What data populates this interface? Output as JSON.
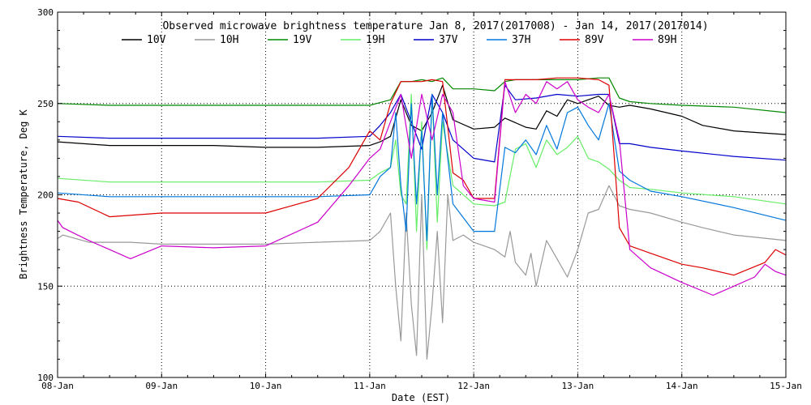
{
  "chart_data": {
    "type": "line",
    "title": "Observed microwave brightness temperature Jan  8, 2017(2017008) - Jan 14, 2017(2017014)",
    "xlabel": "Date (EST)",
    "ylabel": "Brightness Temperature, Deg K",
    "xlim": [
      0,
      7
    ],
    "ylim": [
      100,
      300
    ],
    "yticks": [
      100,
      150,
      200,
      250,
      300
    ],
    "xtick_labels": [
      "08-Jan",
      "09-Jan",
      "10-Jan",
      "11-Jan",
      "12-Jan",
      "13-Jan",
      "14-Jan",
      "15-Jan"
    ],
    "grid": "dotted",
    "legend_position": "top",
    "series": [
      {
        "name": "10V",
        "color": "#000000",
        "x": [
          0,
          0.5,
          1,
          1.5,
          2,
          2.5,
          3,
          3.1,
          3.2,
          3.3,
          3.4,
          3.5,
          3.6,
          3.7,
          3.8,
          4,
          4.2,
          4.3,
          4.5,
          4.6,
          4.7,
          4.8,
          4.9,
          5,
          5.1,
          5.2,
          5.3,
          5.4,
          5.5,
          5.7,
          6,
          6.2,
          6.5,
          7
        ],
        "y": [
          229,
          227,
          227,
          227,
          226,
          226,
          227,
          229,
          232,
          252,
          238,
          235,
          245,
          260,
          241,
          236,
          237,
          242,
          237,
          236,
          246,
          243,
          252,
          250,
          252,
          254,
          249,
          248,
          249,
          247,
          243,
          238,
          235,
          233
        ]
      },
      {
        "name": "10H",
        "color": "#999999",
        "x": [
          0,
          0.05,
          0.3,
          0.7,
          1,
          1.5,
          2,
          2.5,
          3,
          3.1,
          3.2,
          3.25,
          3.3,
          3.35,
          3.4,
          3.45,
          3.5,
          3.55,
          3.6,
          3.65,
          3.7,
          3.75,
          3.8,
          3.9,
          4,
          4.2,
          4.3,
          4.35,
          4.4,
          4.5,
          4.55,
          4.6,
          4.7,
          4.8,
          4.9,
          5,
          5.1,
          5.2,
          5.3,
          5.4,
          5.5,
          5.7,
          6,
          6.2,
          6.5,
          7
        ],
        "y": [
          176,
          178,
          174,
          174,
          173,
          173,
          173,
          174,
          175,
          180,
          190,
          150,
          120,
          190,
          140,
          112,
          200,
          110,
          140,
          180,
          130,
          200,
          175,
          178,
          174,
          170,
          166,
          180,
          163,
          156,
          168,
          150,
          175,
          165,
          155,
          170,
          190,
          192,
          205,
          194,
          192,
          190,
          185,
          182,
          178,
          175
        ]
      },
      {
        "name": "19V",
        "color": "#008800",
        "x": [
          0,
          0.5,
          1,
          1.5,
          2,
          2.5,
          3,
          3.2,
          3.3,
          3.4,
          3.5,
          3.6,
          3.7,
          3.8,
          4,
          4.2,
          4.3,
          4.4,
          4.6,
          4.8,
          5,
          5.2,
          5.3,
          5.4,
          5.5,
          5.7,
          6,
          6.5,
          7
        ],
        "y": [
          250,
          249,
          249,
          249,
          249,
          249,
          249,
          252,
          262,
          262,
          263,
          262,
          264,
          258,
          258,
          257,
          262,
          263,
          263,
          263,
          263,
          264,
          264,
          253,
          251,
          250,
          249,
          248,
          245
        ]
      },
      {
        "name": "19H",
        "color": "#66ee66",
        "x": [
          0,
          0.5,
          1,
          1.5,
          2,
          2.5,
          3,
          3.1,
          3.2,
          3.25,
          3.3,
          3.35,
          3.4,
          3.45,
          3.5,
          3.55,
          3.6,
          3.65,
          3.7,
          3.8,
          4,
          4.2,
          4.3,
          4.4,
          4.5,
          4.6,
          4.7,
          4.8,
          4.9,
          5,
          5.1,
          5.2,
          5.3,
          5.4,
          5.5,
          5.7,
          6,
          6.5,
          7
        ],
        "y": [
          209,
          207,
          207,
          207,
          207,
          207,
          208,
          212,
          215,
          230,
          200,
          195,
          255,
          180,
          240,
          170,
          255,
          185,
          240,
          205,
          195,
          194,
          196,
          225,
          228,
          215,
          230,
          222,
          226,
          232,
          220,
          218,
          214,
          208,
          204,
          203,
          201,
          199,
          195
        ]
      },
      {
        "name": "37V",
        "color": "#0000cc",
        "x": [
          0,
          0.5,
          1,
          1.5,
          2,
          2.5,
          3,
          3.1,
          3.2,
          3.3,
          3.4,
          3.5,
          3.6,
          3.7,
          3.8,
          4,
          4.2,
          4.3,
          4.4,
          4.6,
          4.8,
          5,
          5.2,
          5.3,
          5.4,
          5.5,
          5.7,
          6,
          6.5,
          7
        ],
        "y": [
          232,
          231,
          231,
          231,
          231,
          231,
          232,
          238,
          245,
          255,
          240,
          225,
          255,
          245,
          230,
          220,
          218,
          260,
          252,
          253,
          255,
          254,
          255,
          255,
          228,
          228,
          226,
          224,
          221,
          219
        ]
      },
      {
        "name": "37H",
        "color": "#0077dd",
        "x": [
          0,
          0.5,
          1,
          1.5,
          2,
          2.5,
          3,
          3.1,
          3.2,
          3.25,
          3.3,
          3.35,
          3.4,
          3.45,
          3.5,
          3.55,
          3.6,
          3.65,
          3.7,
          3.8,
          4,
          4.2,
          4.3,
          4.4,
          4.5,
          4.6,
          4.7,
          4.8,
          4.9,
          5,
          5.1,
          5.2,
          5.3,
          5.4,
          5.5,
          5.7,
          6,
          6.5,
          7
        ],
        "y": [
          201,
          199,
          199,
          199,
          199,
          199,
          200,
          210,
          215,
          245,
          205,
          180,
          250,
          195,
          235,
          175,
          255,
          200,
          245,
          195,
          180,
          180,
          226,
          223,
          230,
          222,
          238,
          225,
          245,
          248,
          238,
          230,
          250,
          213,
          208,
          202,
          199,
          193,
          186
        ]
      },
      {
        "name": "89V",
        "color": "#dd0000",
        "x": [
          0,
          0.2,
          0.5,
          1,
          1.5,
          2,
          2.5,
          2.8,
          3,
          3.1,
          3.2,
          3.3,
          3.4,
          3.5,
          3.6,
          3.7,
          3.8,
          3.9,
          4,
          4.2,
          4.3,
          4.4,
          4.6,
          4.8,
          5,
          5.2,
          5.3,
          5.4,
          5.5,
          5.7,
          6,
          6.2,
          6.5,
          6.8,
          6.9,
          7
        ],
        "y": [
          198,
          196,
          188,
          190,
          190,
          190,
          198,
          215,
          235,
          230,
          250,
          262,
          262,
          262,
          263,
          262,
          212,
          208,
          198,
          198,
          263,
          263,
          263,
          264,
          264,
          263,
          260,
          182,
          172,
          168,
          162,
          160,
          156,
          163,
          170,
          167
        ]
      },
      {
        "name": "89H",
        "color": "#cc00cc",
        "x": [
          0,
          0.05,
          0.3,
          0.5,
          0.7,
          1,
          1.5,
          2,
          2.5,
          2.8,
          3,
          3.1,
          3.2,
          3.3,
          3.4,
          3.5,
          3.6,
          3.7,
          3.8,
          3.9,
          4,
          4.2,
          4.3,
          4.4,
          4.5,
          4.6,
          4.7,
          4.8,
          4.9,
          5,
          5.1,
          5.2,
          5.3,
          5.4,
          5.5,
          5.7,
          6,
          6.3,
          6.5,
          6.7,
          6.8,
          6.9,
          7
        ],
        "y": [
          186,
          182,
          175,
          170,
          165,
          172,
          171,
          172,
          185,
          205,
          220,
          225,
          240,
          255,
          220,
          255,
          230,
          255,
          245,
          205,
          198,
          196,
          262,
          245,
          255,
          250,
          262,
          258,
          262,
          252,
          248,
          245,
          255,
          230,
          170,
          160,
          152,
          145,
          150,
          155,
          162,
          158,
          156
        ]
      }
    ]
  }
}
